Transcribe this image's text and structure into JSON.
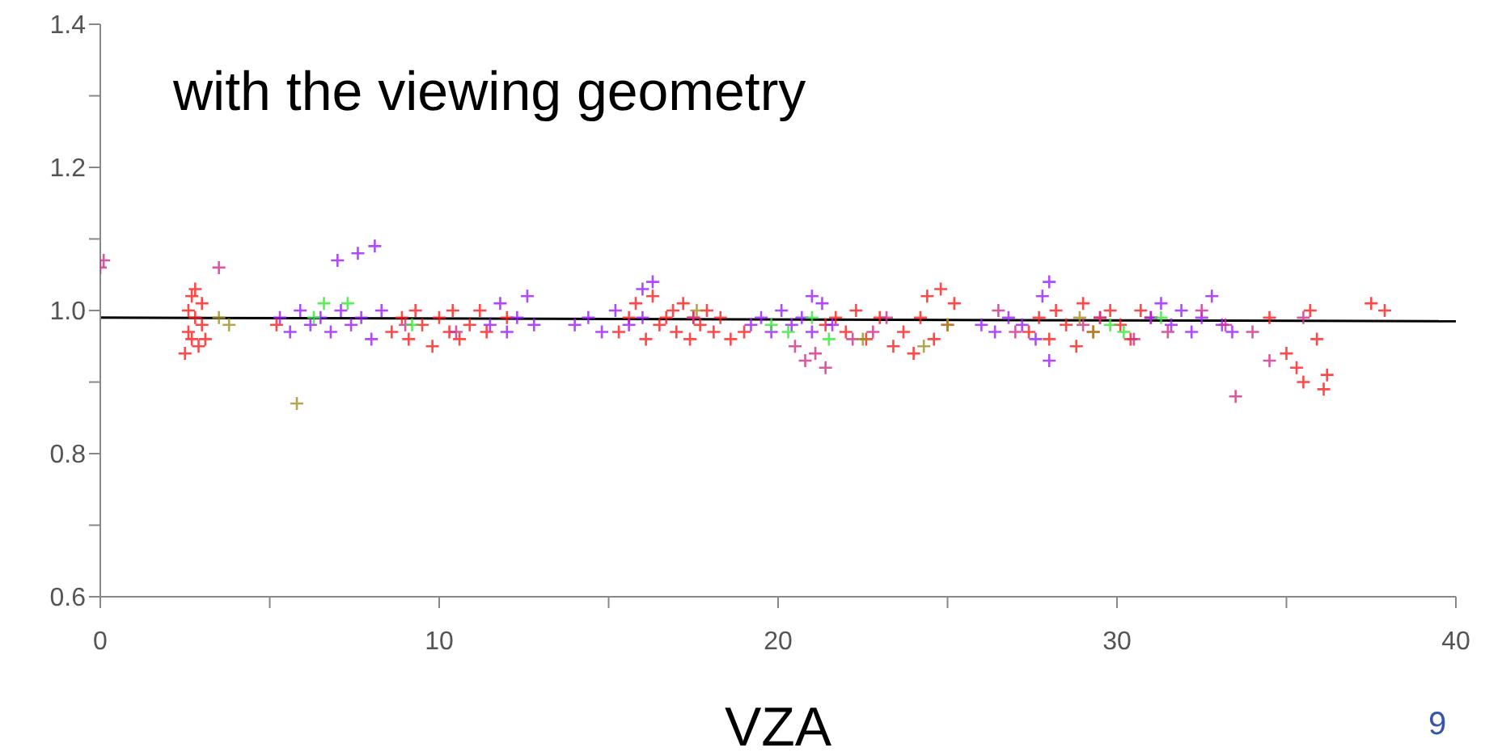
{
  "chart_data": {
    "type": "scatter",
    "xlabel": "VZA",
    "annotations": [
      "with the viewing geometry",
      "9"
    ],
    "xlim": [
      0,
      40
    ],
    "xticks": [
      0,
      {
        "value": 5,
        "label": null
      },
      10,
      {
        "value": 15,
        "label": null
      },
      20,
      {
        "value": 25,
        "label": null
      },
      30,
      {
        "value": 35,
        "label": null
      },
      40
    ],
    "ylim": [
      0.6,
      1.4
    ],
    "yticks": [
      {
        "value": 0.6,
        "label": "0.6"
      },
      {
        "value": 0.7,
        "label": null
      },
      {
        "value": 0.8,
        "label": "0.8"
      },
      {
        "value": 0.9,
        "label": null
      },
      {
        "value": 1.0,
        "label": "1.0"
      },
      {
        "value": 1.1,
        "label": null
      },
      {
        "value": 1.2,
        "label": "1.2"
      },
      {
        "value": 1.3,
        "label": null
      },
      {
        "value": 1.4,
        "label": "1.4"
      }
    ],
    "marker": "cross",
    "series": [
      {
        "color": "#ff1a1a",
        "x": [
          2.5,
          2.6,
          2.6,
          2.7,
          2.7,
          2.8,
          2.8,
          2.9,
          3.0,
          3.0,
          3.1,
          5.2,
          8.6,
          8.9,
          9.1,
          9.3,
          9.5,
          9.8,
          10.0,
          10.3,
          10.4,
          10.6,
          10.9,
          11.2,
          11.4,
          12.0,
          15.3,
          15.6,
          15.8,
          16.1,
          16.3,
          16.5,
          16.7,
          16.9,
          17.0,
          17.2,
          17.4,
          17.5,
          17.7,
          17.9,
          18.1,
          18.3,
          18.6,
          19.0,
          21.4,
          21.7,
          22.0,
          22.3,
          22.6,
          23.0,
          23.4,
          23.7,
          24.0,
          24.2,
          24.4,
          24.6,
          24.8,
          25.0,
          25.2,
          27.4,
          27.7,
          28.0,
          28.2,
          28.5,
          28.8,
          29.0,
          29.3,
          29.5,
          29.8,
          30.1,
          30.4,
          30.7,
          31.0,
          34.5,
          35.0,
          35.3,
          35.5,
          35.7,
          35.9,
          36.1,
          36.2,
          37.5,
          37.9
        ],
        "values": [
          0.94,
          0.97,
          1.0,
          0.96,
          1.02,
          0.99,
          1.03,
          0.95,
          0.98,
          1.01,
          0.96,
          0.98,
          0.97,
          0.99,
          0.96,
          1.0,
          0.98,
          0.95,
          0.99,
          0.97,
          1.0,
          0.96,
          0.98,
          1.0,
          0.97,
          0.99,
          0.97,
          0.99,
          1.01,
          0.96,
          1.02,
          0.98,
          0.99,
          1.0,
          0.97,
          1.01,
          0.96,
          0.99,
          0.98,
          1.0,
          0.97,
          0.99,
          0.96,
          0.97,
          0.98,
          0.99,
          0.97,
          1.0,
          0.96,
          0.99,
          0.95,
          0.97,
          0.94,
          0.99,
          1.02,
          0.96,
          1.03,
          0.98,
          1.01,
          0.97,
          0.99,
          0.96,
          1.0,
          0.98,
          0.95,
          1.01,
          0.97,
          0.99,
          1.0,
          0.98,
          0.96,
          1.0,
          0.99,
          0.99,
          0.94,
          0.92,
          0.9,
          1.0,
          0.96,
          0.89,
          0.91,
          1.01,
          1.0
        ]
      },
      {
        "color": "#9b1cff",
        "x": [
          5.3,
          5.6,
          5.9,
          6.2,
          6.5,
          6.8,
          7.1,
          7.4,
          7.7,
          8.0,
          8.3,
          11.5,
          11.8,
          12.0,
          12.3,
          12.6,
          12.8,
          14.0,
          14.4,
          14.8,
          15.2,
          15.6,
          16.0,
          16.3,
          19.2,
          19.5,
          19.8,
          20.1,
          20.4,
          20.7,
          21.0,
          21.3,
          21.6,
          26.0,
          26.4,
          26.8,
          27.2,
          27.6,
          27.8,
          28.0,
          31.0,
          31.3,
          31.6,
          31.9,
          32.2,
          32.5,
          32.8,
          33.1,
          33.4,
          7.0,
          7.6,
          8.1,
          16.0,
          21.0,
          28.0
        ],
        "values": [
          0.99,
          0.97,
          1.0,
          0.98,
          0.99,
          0.97,
          1.0,
          0.98,
          0.99,
          0.96,
          1.0,
          0.98,
          1.01,
          0.97,
          0.99,
          1.02,
          0.98,
          0.98,
          0.99,
          0.97,
          1.0,
          0.98,
          0.99,
          1.04,
          0.98,
          0.99,
          0.97,
          1.0,
          0.98,
          0.99,
          0.97,
          1.01,
          0.98,
          0.98,
          0.97,
          0.99,
          0.98,
          0.96,
          1.02,
          0.93,
          0.99,
          1.01,
          0.98,
          1.0,
          0.97,
          0.99,
          1.02,
          0.98,
          0.97,
          1.07,
          1.08,
          1.09,
          1.03,
          1.02,
          1.04
        ]
      },
      {
        "color": "#d0308a",
        "x": [
          0.0,
          0.1,
          3.5,
          9.0,
          10.5,
          17.5,
          20.5,
          20.8,
          21.1,
          21.4,
          22.2,
          22.8,
          23.2,
          29.0,
          29.5,
          30.5,
          31.5,
          32.5,
          33.2,
          34.0,
          34.5,
          35.5,
          26.5,
          27.0,
          33.5
        ],
        "values": [
          1.06,
          1.07,
          1.06,
          0.98,
          0.97,
          0.99,
          0.95,
          0.93,
          0.94,
          0.92,
          0.96,
          0.97,
          0.99,
          0.98,
          0.99,
          0.96,
          0.97,
          1.0,
          0.98,
          0.97,
          0.93,
          0.99,
          1.0,
          0.97,
          0.88
        ]
      },
      {
        "color": "#33e833",
        "x": [
          6.3,
          6.6,
          7.3,
          9.2,
          19.8,
          20.3,
          21.0,
          21.5,
          29.8,
          30.2,
          31.3
        ],
        "values": [
          0.99,
          1.01,
          1.01,
          0.98,
          0.98,
          0.97,
          0.99,
          0.96,
          0.98,
          0.97,
          0.99
        ]
      },
      {
        "color": "#a09020",
        "x": [
          3.5,
          3.8,
          5.8,
          17.6,
          22.5,
          24.3,
          25.0,
          28.9,
          29.3
        ],
        "values": [
          0.99,
          0.98,
          0.87,
          1.0,
          0.96,
          0.95,
          0.98,
          0.99,
          0.97
        ]
      },
      {
        "type": "line",
        "color": "#000000",
        "x": [
          0,
          40
        ],
        "values": [
          0.99,
          0.985
        ],
        "marker": "none"
      }
    ]
  }
}
